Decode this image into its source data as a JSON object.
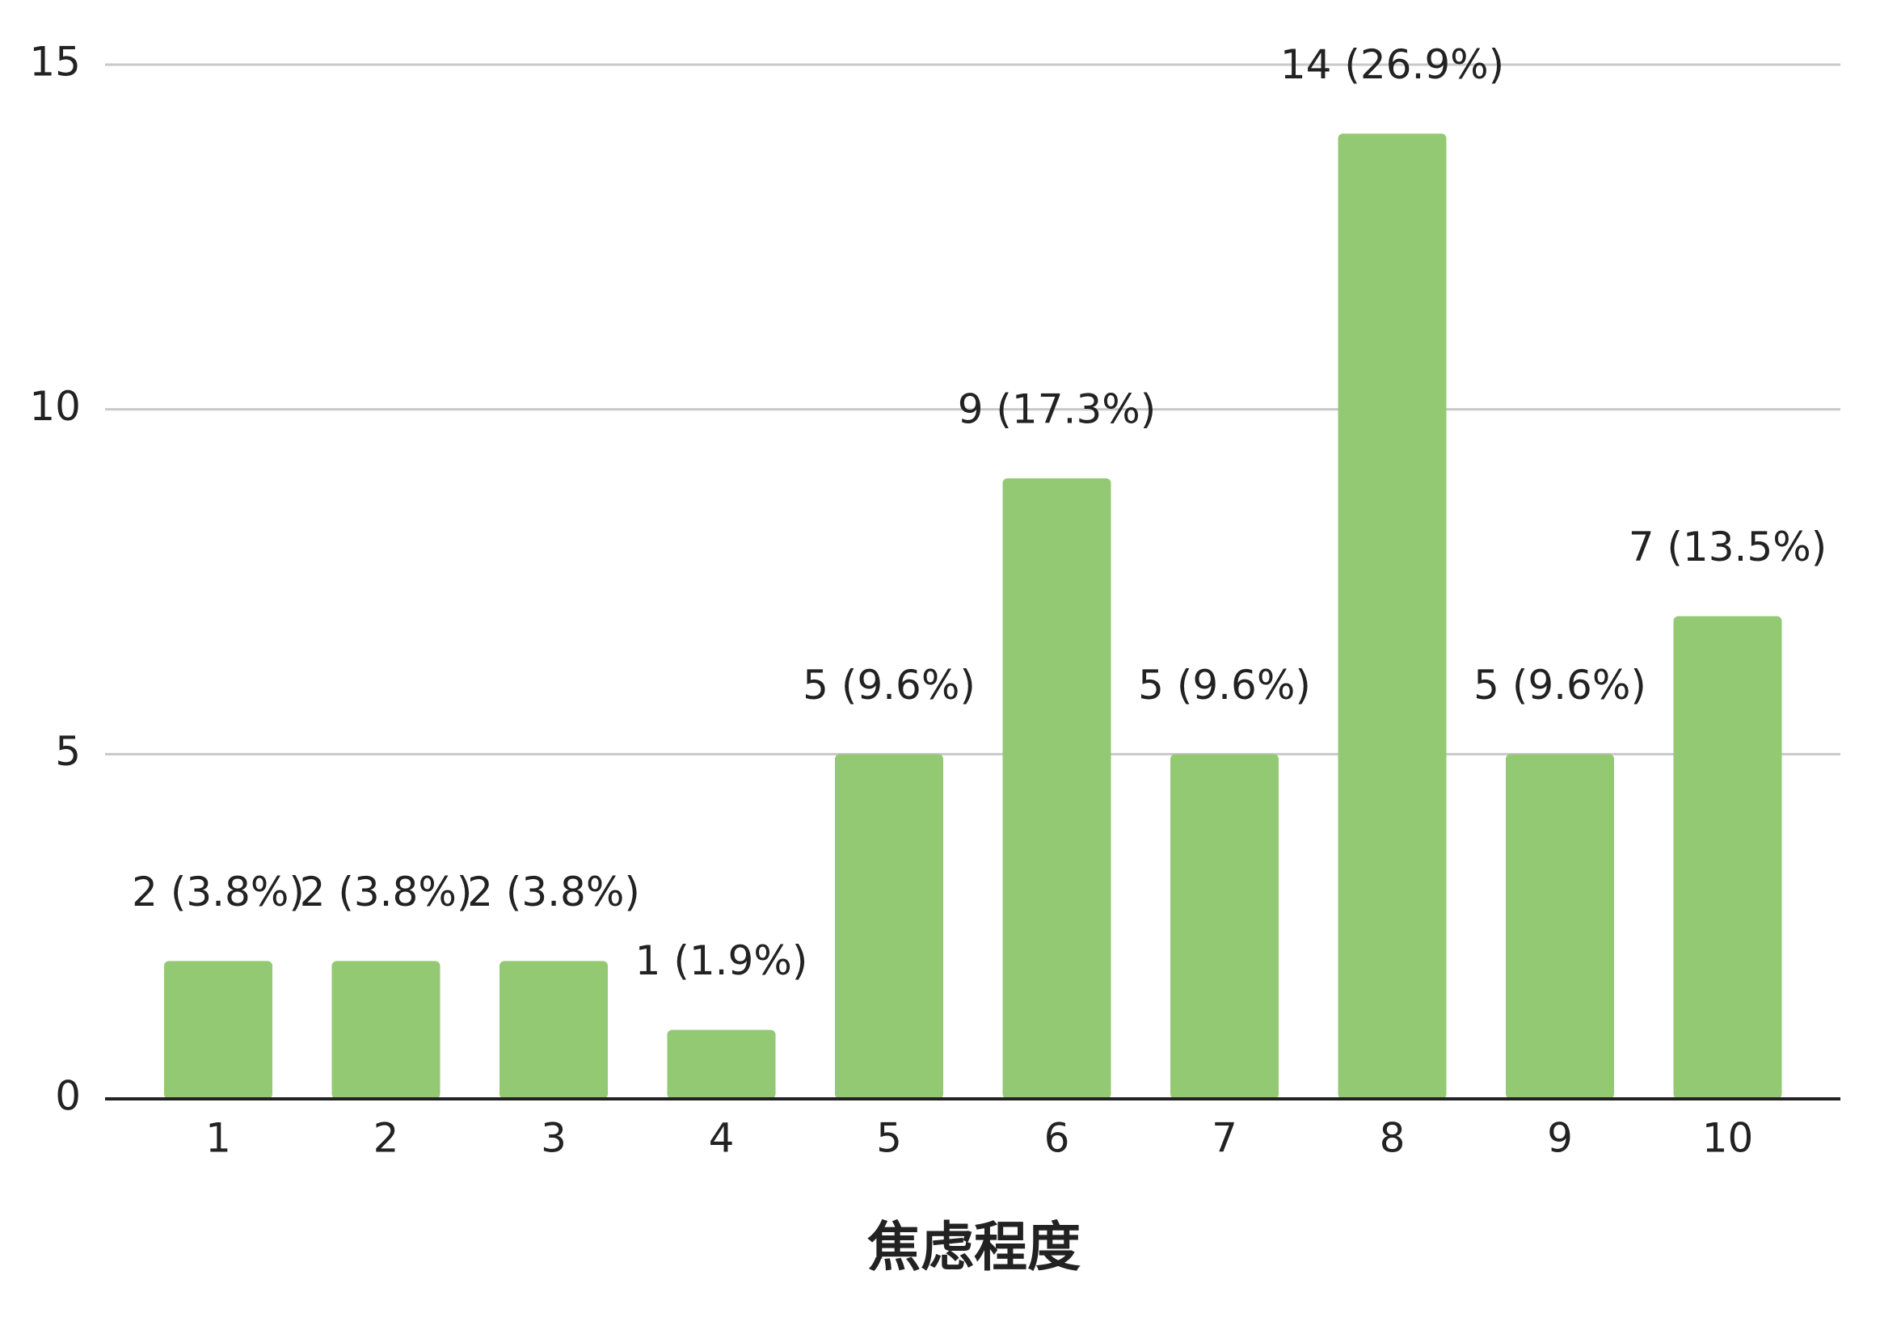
{
  "chart_data": {
    "type": "bar",
    "x_label": "焦虑程度",
    "categories": [
      "1",
      "2",
      "3",
      "4",
      "5",
      "6",
      "7",
      "8",
      "9",
      "10"
    ],
    "values": [
      2,
      2,
      2,
      1,
      5,
      9,
      5,
      14,
      5,
      7
    ],
    "value_labels": [
      "2 (3.8%)",
      "2 (3.8%)",
      "2 (3.8%)",
      "1 (1.9%)",
      "5 (9.6%)",
      "9 (17.3%)",
      "5 (9.6%)",
      "14 (26.9%)",
      "5 (9.6%)",
      "7 (13.5%)"
    ],
    "color": "#93c972",
    "ylim": [
      0,
      15
    ],
    "yticks": [
      0,
      5,
      10,
      15
    ],
    "grid": true
  }
}
